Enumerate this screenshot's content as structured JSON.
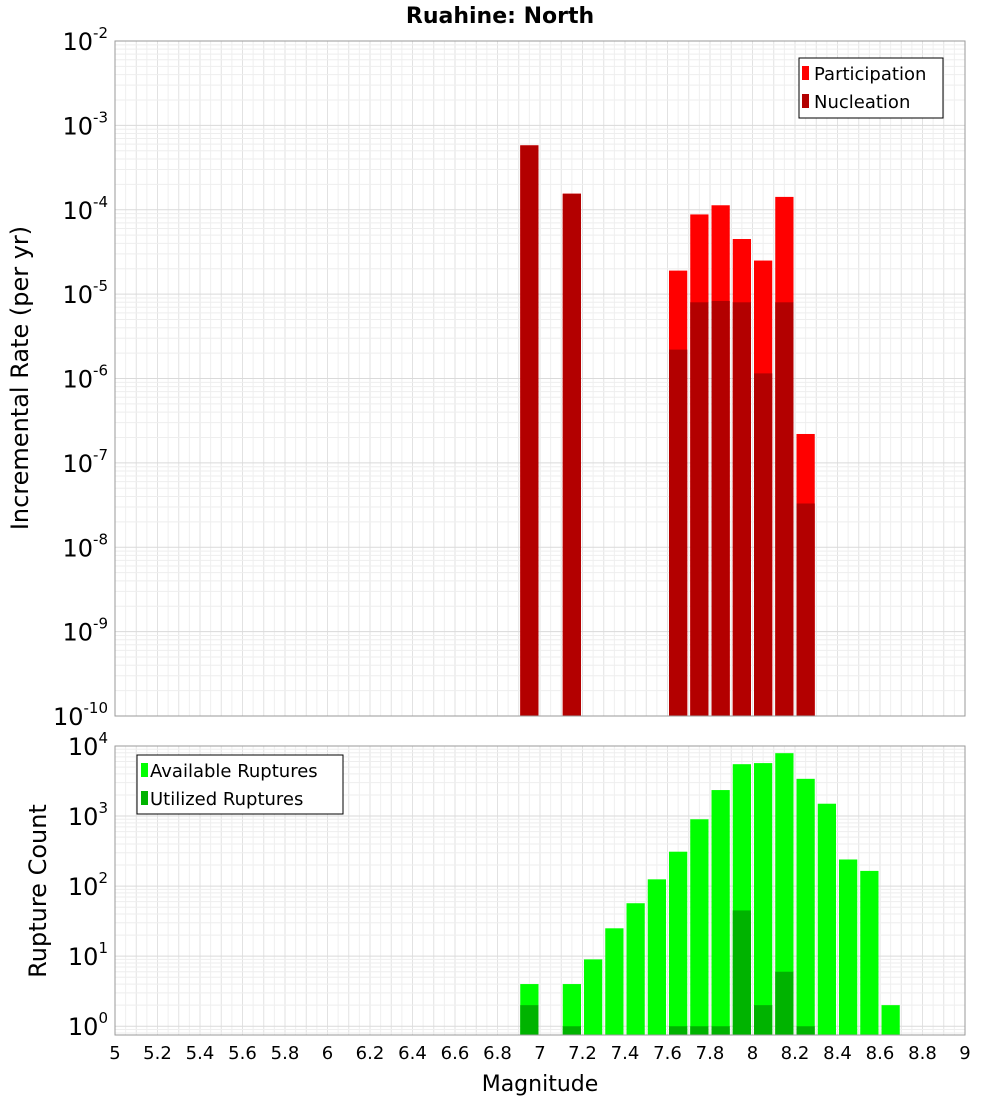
{
  "chart_data": [
    {
      "type": "bar",
      "title": "Ruahine: North",
      "ylabel": "Incremental Rate (per yr)",
      "xlabel": "",
      "xlim": [
        5,
        9
      ],
      "ylim": [
        1e-10,
        0.01
      ],
      "yscale": "log",
      "grid": true,
      "legend_position": "top-right",
      "bar_width": 0.1,
      "x_tick_labels": [],
      "y_ticks": [
        {
          "base": "10",
          "exp": "-10"
        },
        {
          "base": "10",
          "exp": "-9"
        },
        {
          "base": "10",
          "exp": "-8"
        },
        {
          "base": "10",
          "exp": "-7"
        },
        {
          "base": "10",
          "exp": "-6"
        },
        {
          "base": "10",
          "exp": "-5"
        },
        {
          "base": "10",
          "exp": "-4"
        },
        {
          "base": "10",
          "exp": "-3"
        },
        {
          "base": "10",
          "exp": "-2"
        }
      ],
      "series": [
        {
          "name": "Participation",
          "color": "#ff0000",
          "points": [
            {
              "x": 6.95,
              "y": 0.00058
            },
            {
              "x": 7.15,
              "y": 0.000155
            },
            {
              "x": 7.65,
              "y": 1.9e-05
            },
            {
              "x": 7.75,
              "y": 8.8e-05
            },
            {
              "x": 7.85,
              "y": 0.000113
            },
            {
              "x": 7.95,
              "y": 4.5e-05
            },
            {
              "x": 8.05,
              "y": 2.5e-05
            },
            {
              "x": 8.15,
              "y": 0.000142
            },
            {
              "x": 8.25,
              "y": 2.2e-07
            }
          ]
        },
        {
          "name": "Nucleation",
          "color": "#b30000",
          "points": [
            {
              "x": 6.95,
              "y": 0.00058
            },
            {
              "x": 7.15,
              "y": 0.000155
            },
            {
              "x": 7.65,
              "y": 2.2e-06
            },
            {
              "x": 7.75,
              "y": 8e-06
            },
            {
              "x": 7.85,
              "y": 8.3e-06
            },
            {
              "x": 7.95,
              "y": 8e-06
            },
            {
              "x": 8.05,
              "y": 1.15e-06
            },
            {
              "x": 8.15,
              "y": 8e-06
            },
            {
              "x": 8.25,
              "y": 3.3e-08
            }
          ]
        }
      ]
    },
    {
      "type": "bar",
      "title": "",
      "ylabel": "Rupture Count",
      "xlabel": "Magnitude",
      "xlim": [
        5,
        9
      ],
      "ylim": [
        0.75,
        10000
      ],
      "yscale": "log",
      "grid": true,
      "legend_position": "top-left",
      "bar_width": 0.1,
      "x_tick_labels": [
        "5",
        "5.2",
        "5.4",
        "5.6",
        "5.8",
        "6",
        "6.2",
        "6.4",
        "6.6",
        "6.8",
        "7",
        "7.2",
        "7.4",
        "7.6",
        "7.8",
        "8",
        "8.2",
        "8.4",
        "8.6",
        "8.8",
        "9"
      ],
      "y_ticks": [
        {
          "base": "10",
          "exp": "0"
        },
        {
          "base": "10",
          "exp": "1"
        },
        {
          "base": "10",
          "exp": "2"
        },
        {
          "base": "10",
          "exp": "3"
        },
        {
          "base": "10",
          "exp": "4"
        }
      ],
      "series": [
        {
          "name": "Available Ruptures",
          "color": "#00ff00",
          "points": [
            {
              "x": 6.95,
              "y": 4
            },
            {
              "x": 7.15,
              "y": 4
            },
            {
              "x": 7.25,
              "y": 9
            },
            {
              "x": 7.35,
              "y": 25
            },
            {
              "x": 7.45,
              "y": 57
            },
            {
              "x": 7.55,
              "y": 125
            },
            {
              "x": 7.65,
              "y": 310
            },
            {
              "x": 7.75,
              "y": 900
            },
            {
              "x": 7.85,
              "y": 2350
            },
            {
              "x": 7.95,
              "y": 5500
            },
            {
              "x": 8.05,
              "y": 5700
            },
            {
              "x": 8.15,
              "y": 7900
            },
            {
              "x": 8.25,
              "y": 3400
            },
            {
              "x": 8.35,
              "y": 1500
            },
            {
              "x": 8.45,
              "y": 240
            },
            {
              "x": 8.55,
              "y": 165
            },
            {
              "x": 8.65,
              "y": 2
            }
          ]
        },
        {
          "name": "Utilized Ruptures",
          "color": "#00b300",
          "points": [
            {
              "x": 6.95,
              "y": 2
            },
            {
              "x": 7.15,
              "y": 1
            },
            {
              "x": 7.65,
              "y": 1
            },
            {
              "x": 7.75,
              "y": 1
            },
            {
              "x": 7.85,
              "y": 1
            },
            {
              "x": 7.95,
              "y": 45
            },
            {
              "x": 8.05,
              "y": 2
            },
            {
              "x": 8.15,
              "y": 6
            },
            {
              "x": 8.25,
              "y": 1
            }
          ]
        }
      ]
    }
  ]
}
